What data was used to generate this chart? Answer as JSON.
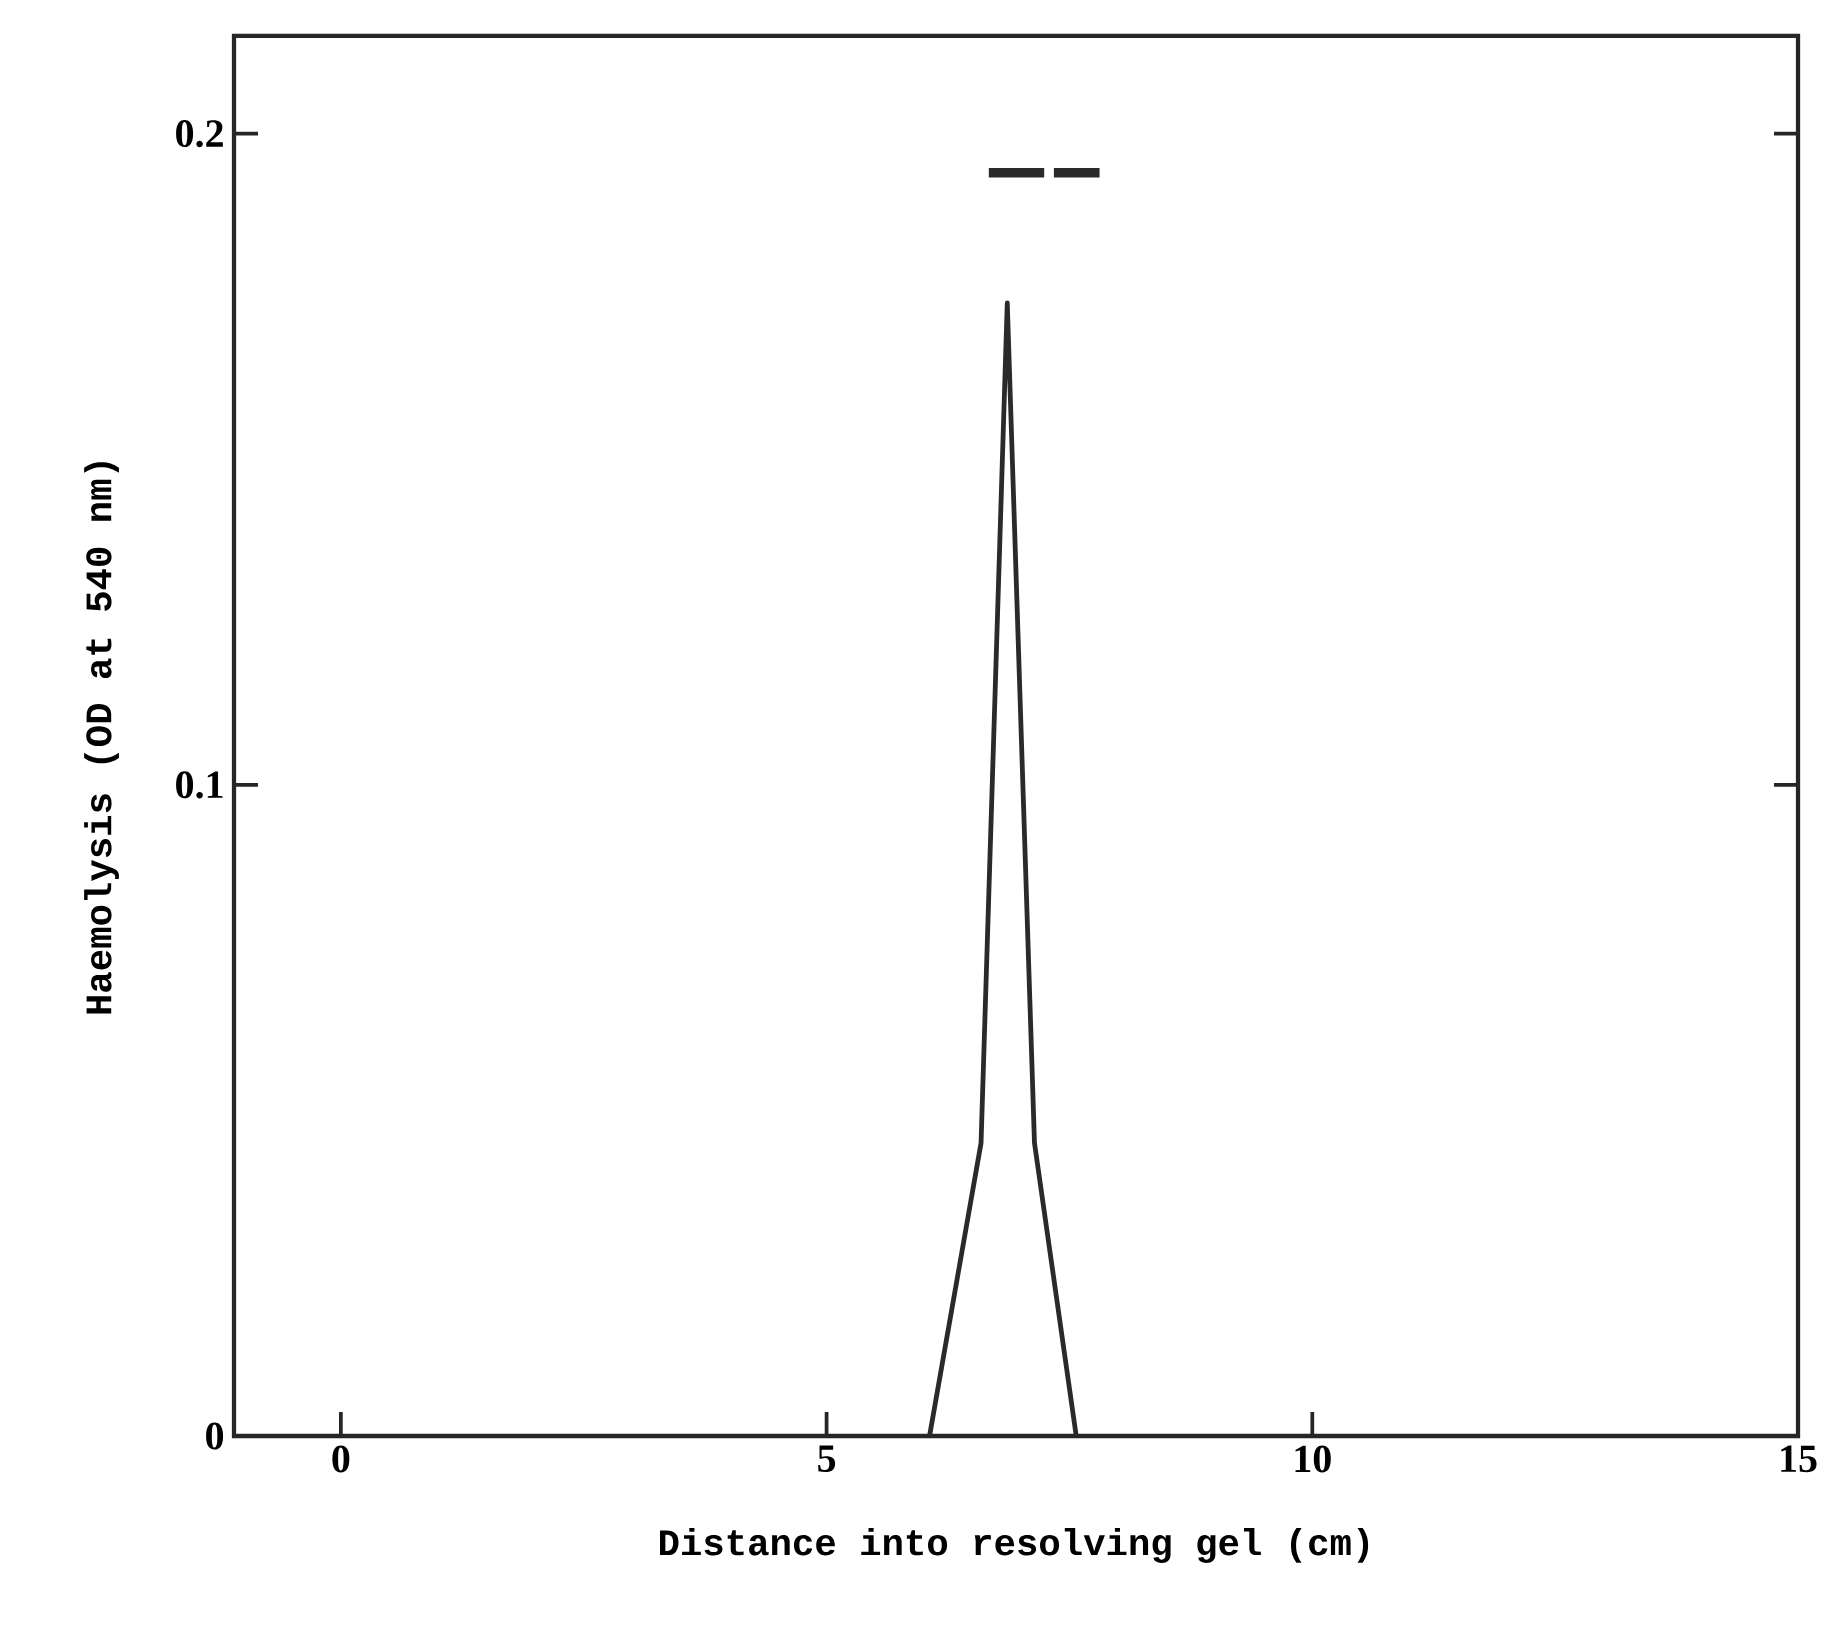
{
  "chart_data": {
    "type": "line",
    "xlabel": "Distance into resolving gel (cm)",
    "ylabel": "Haemolysis (OD at 540 nm)",
    "xlim": [
      -1.1,
      15
    ],
    "ylim": [
      0,
      0.215
    ],
    "xticks": [
      0,
      5,
      10,
      15
    ],
    "yticks": [
      0,
      {
        "value": 0.1,
        "label": "0.1"
      },
      {
        "value": 0.2,
        "label": "0.2"
      }
    ],
    "grid": false,
    "marker": "none",
    "line_style": "solid",
    "series": [
      {
        "color": "#2a2a2a",
        "x": [
          6.06,
          6.59,
          6.86,
          7.14,
          7.57
        ],
        "values": [
          0,
          0.045,
          0.174,
          0.045,
          0
        ]
      },
      {
        "color": "#2a2a2a",
        "x": [
          6.67,
          7.24,
          7.29,
          7.34,
          7.81
        ],
        "values": [
          0.194,
          0.194,
          null,
          0.194,
          0.194
        ]
      }
    ]
  }
}
